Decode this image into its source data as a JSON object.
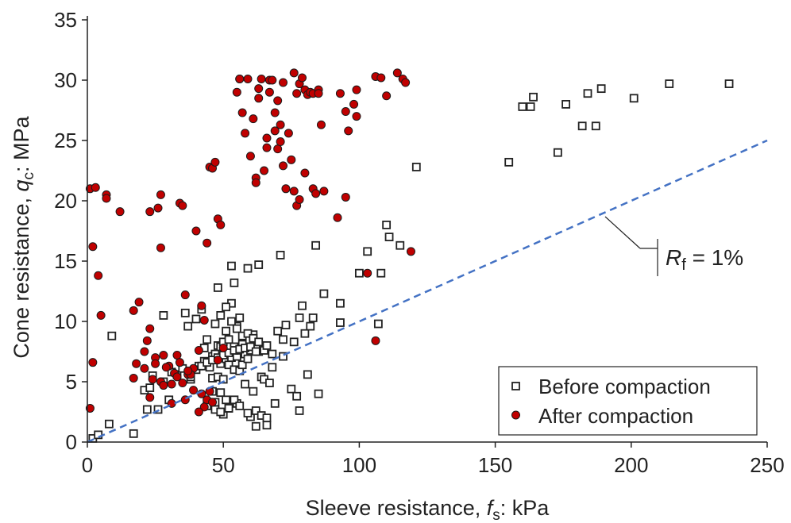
{
  "chart_data": {
    "type": "scatter",
    "xlabel_prefix": "Sleeve resistance, ",
    "xlabel_var": "f",
    "xlabel_sub": "s",
    "xlabel_suffix": ": kPa",
    "ylabel_prefix": "Cone resistance, ",
    "ylabel_var": "q",
    "ylabel_sub": "c",
    "ylabel_suffix": ": MPa",
    "xlim": [
      0,
      250
    ],
    "ylim": [
      0,
      35
    ],
    "xticks": [
      0,
      50,
      100,
      150,
      200,
      250
    ],
    "yticks": [
      0,
      5,
      10,
      15,
      20,
      25,
      30,
      35
    ],
    "grid": false,
    "legend_position": "bottom-right",
    "reference_line": {
      "label_var": "R",
      "label_sub": "f",
      "label_suffix": " = 1%",
      "x": [
        0,
        250
      ],
      "y": [
        0,
        25
      ],
      "color": "#4472C4"
    },
    "series": [
      {
        "name": "Before compaction",
        "marker": "square",
        "color": "#222222",
        "x": [
          2,
          4,
          8,
          9,
          17,
          21,
          22,
          23,
          26,
          28,
          30,
          33,
          36,
          37,
          38,
          40,
          41,
          42,
          43,
          43,
          44,
          45,
          45,
          46,
          46,
          46,
          47,
          47,
          48,
          48,
          48,
          49,
          49,
          49,
          50,
          50,
          50,
          51,
          51,
          51,
          52,
          52,
          52,
          53,
          53,
          53,
          54,
          54,
          54,
          55,
          55,
          55,
          56,
          56,
          56,
          57,
          57,
          58,
          58,
          59,
          59,
          60,
          60,
          61,
          61,
          62,
          62,
          63,
          63,
          64,
          65,
          66,
          67,
          68,
          69,
          70,
          71,
          72,
          73,
          75,
          76,
          77,
          78,
          78,
          79,
          80,
          81,
          82,
          83,
          84,
          85,
          87,
          93,
          93,
          100,
          103,
          107,
          108,
          110,
          111,
          115,
          121,
          155,
          160,
          163,
          164,
          173,
          176,
          182,
          184,
          187,
          189,
          201,
          214,
          236,
          44,
          47,
          49,
          52,
          54,
          56,
          59,
          62,
          64,
          66,
          24,
          28,
          31,
          35,
          38,
          40,
          42,
          44,
          46,
          48,
          50,
          52,
          54,
          56,
          58,
          60,
          62,
          65,
          68,
          72,
          47,
          49,
          51,
          53,
          55,
          57,
          59,
          61,
          63,
          66
        ],
        "y": [
          0.3,
          0.6,
          1.5,
          8.8,
          0.7,
          4.3,
          2.7,
          4.5,
          2.7,
          10.5,
          3.5,
          5.6,
          10.7,
          9.6,
          5.2,
          10.2,
          6.3,
          11.0,
          6.7,
          7.8,
          8.5,
          3.1,
          6.2,
          4.2,
          5.3,
          7.1,
          2.7,
          7.3,
          5.4,
          8.0,
          12.8,
          4.1,
          6.5,
          7.9,
          2.3,
          5.2,
          8.3,
          3.5,
          6.9,
          9.2,
          2.8,
          6.4,
          8.5,
          11.5,
          7.0,
          14.6,
          6.0,
          7.9,
          13.2,
          3.2,
          7.1,
          9.6,
          5.9,
          7.6,
          10.3,
          6.4,
          8.1,
          4.8,
          7.3,
          14.4,
          6.9,
          2.1,
          7.6,
          4.2,
          8.9,
          1.3,
          7.8,
          7.5,
          14.7,
          5.4,
          5.2,
          1.4,
          4.9,
          6.2,
          3.2,
          9.2,
          15.5,
          8.5,
          9.7,
          4.4,
          8.3,
          3.8,
          10.3,
          2.6,
          11.3,
          9.0,
          5.6,
          9.6,
          10.3,
          16.3,
          4.0,
          12.3,
          11.5,
          9.9,
          14.0,
          15.8,
          9.8,
          14.0,
          18.0,
          17.0,
          16.3,
          22.8,
          23.2,
          27.8,
          27.8,
          28.6,
          24.0,
          28.0,
          26.2,
          28.9,
          26.2,
          29.3,
          28.5,
          29.7,
          29.7,
          3.0,
          3.3,
          2.5,
          2.8,
          3.5,
          3.0,
          2.4,
          2.6,
          2.2,
          2.0,
          5.5,
          5.0,
          5.8,
          6.1,
          5.4,
          6.0,
          6.3,
          6.6,
          6.8,
          7.0,
          7.2,
          7.4,
          7.6,
          7.7,
          7.8,
          7.9,
          7.5,
          7.6,
          7.3,
          7.1,
          9.8,
          10.5,
          11.2,
          10.0,
          9.4,
          8.8,
          9.0,
          8.6,
          8.3,
          8.0
        ]
      },
      {
        "name": "After compaction",
        "marker": "circle",
        "color": "#C00000",
        "x": [
          1,
          1,
          2,
          2,
          3,
          4,
          5,
          7,
          7,
          12,
          17,
          17,
          18,
          19,
          21,
          22,
          23,
          23,
          25,
          26,
          27,
          27,
          28,
          30,
          31,
          32,
          33,
          34,
          35,
          36,
          37,
          39,
          40,
          41,
          42,
          43,
          44,
          45,
          46,
          47,
          48,
          49,
          50,
          55,
          56,
          56,
          57,
          58,
          59,
          60,
          61,
          62,
          62,
          63,
          63,
          64,
          65,
          66,
          66,
          67,
          67,
          68,
          69,
          69,
          70,
          70,
          71,
          71,
          72,
          72,
          73,
          74,
          75,
          76,
          76,
          77,
          77,
          78,
          78,
          79,
          80,
          80,
          81,
          82,
          83,
          83,
          84,
          85,
          85,
          86,
          87,
          92,
          93,
          95,
          95,
          96,
          98,
          99,
          99,
          103,
          106,
          106,
          108,
          110,
          114,
          116,
          117,
          119,
          45,
          44,
          43,
          41,
          39,
          36,
          33,
          31,
          29,
          27,
          25,
          23,
          21,
          24,
          28,
          34,
          38,
          42,
          46,
          48,
          37,
          35
        ],
        "y": [
          21.0,
          2.8,
          16.2,
          6.6,
          21.1,
          13.8,
          10.5,
          20.5,
          20.2,
          19.1,
          10.9,
          5.3,
          6.5,
          11.6,
          7.5,
          8.4,
          9.4,
          19.1,
          7.0,
          19.4,
          20.5,
          16.1,
          7.2,
          6.3,
          3.2,
          5.7,
          7.2,
          19.8,
          19.6,
          12.2,
          5.6,
          6.1,
          17.5,
          7.6,
          11.3,
          10.1,
          16.5,
          22.8,
          22.7,
          23.2,
          18.5,
          18.0,
          7.8,
          29.0,
          30.1,
          30.1,
          27.3,
          25.6,
          30.1,
          23.7,
          26.8,
          21.9,
          21.5,
          28.5,
          29.3,
          30.1,
          22.5,
          25.2,
          24.4,
          30.0,
          29.0,
          30.0,
          25.8,
          27.3,
          28.3,
          24.3,
          26.3,
          24.9,
          22.9,
          29.8,
          21.0,
          25.6,
          23.4,
          30.6,
          20.8,
          28.9,
          19.6,
          29.7,
          20.1,
          30.2,
          29.2,
          22.3,
          28.8,
          29.0,
          21.0,
          28.9,
          20.6,
          29.2,
          28.9,
          26.3,
          20.8,
          18.6,
          28.9,
          20.3,
          27.4,
          25.8,
          28.0,
          29.2,
          27.0,
          14.0,
          8.4,
          30.3,
          30.2,
          28.7,
          30.6,
          30.1,
          29.8,
          15.8,
          4.2,
          3.5,
          2.9,
          2.5,
          4.3,
          3.5,
          5.4,
          4.8,
          6.2,
          5.0,
          6.5,
          3.7,
          6.1,
          5.2,
          4.7,
          6.6,
          5.6,
          4.0,
          3.3,
          6.8,
          5.9,
          4.9
        ]
      }
    ]
  }
}
